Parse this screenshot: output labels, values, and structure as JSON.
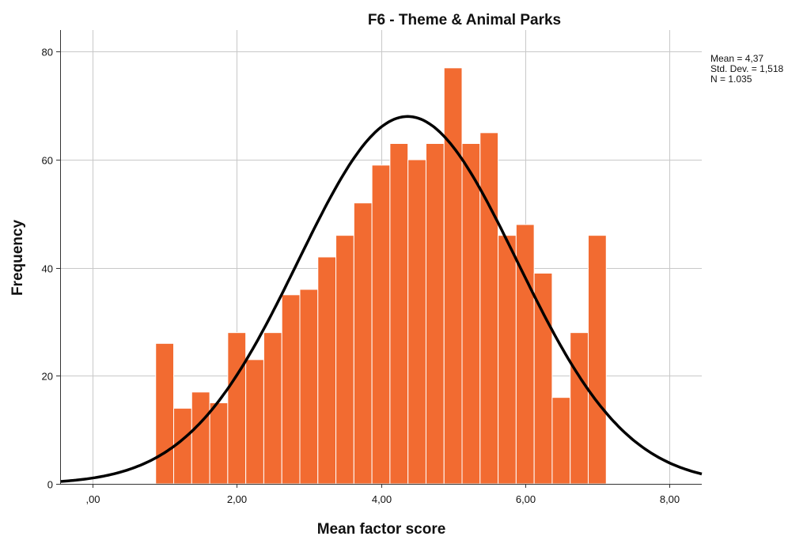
{
  "chart_data": {
    "type": "bar",
    "title": "F6 - Theme & Animal Parks",
    "xlabel": "Mean factor score",
    "ylabel": "Frequency",
    "xlim": [
      -0.45,
      8.45
    ],
    "ylim": [
      0,
      84
    ],
    "x_ticks": [
      0,
      2,
      4,
      6,
      8
    ],
    "x_tick_labels": [
      ",00",
      "2,00",
      "4,00",
      "6,00",
      "8,00"
    ],
    "y_ticks": [
      0,
      20,
      40,
      60,
      80
    ],
    "y_tick_labels": [
      "0",
      "20",
      "40",
      "60",
      "80"
    ],
    "grid": true,
    "bin_width": 0.25,
    "bin_starts": [
      0.875,
      1.125,
      1.375,
      1.625,
      1.875,
      2.125,
      2.375,
      2.625,
      2.875,
      3.125,
      3.375,
      3.625,
      3.875,
      4.125,
      4.375,
      4.625,
      4.875,
      5.125,
      5.375,
      5.625,
      5.875,
      6.125,
      6.375,
      6.625,
      6.875
    ],
    "values": [
      26,
      14,
      17,
      15,
      28,
      23,
      28,
      35,
      36,
      42,
      46,
      52,
      59,
      63,
      60,
      63,
      77,
      63,
      65,
      46,
      48,
      39,
      16,
      28,
      46
    ],
    "bar_color": "#f26b31",
    "normal_curve": {
      "mean": 4.37,
      "std_dev": 1.518,
      "n": 1035,
      "color": "#000000"
    },
    "stats": [
      "Mean = 4,37",
      "Std. Dev. = 1,518",
      "N = 1.035"
    ],
    "stats_placement": "top-right"
  }
}
